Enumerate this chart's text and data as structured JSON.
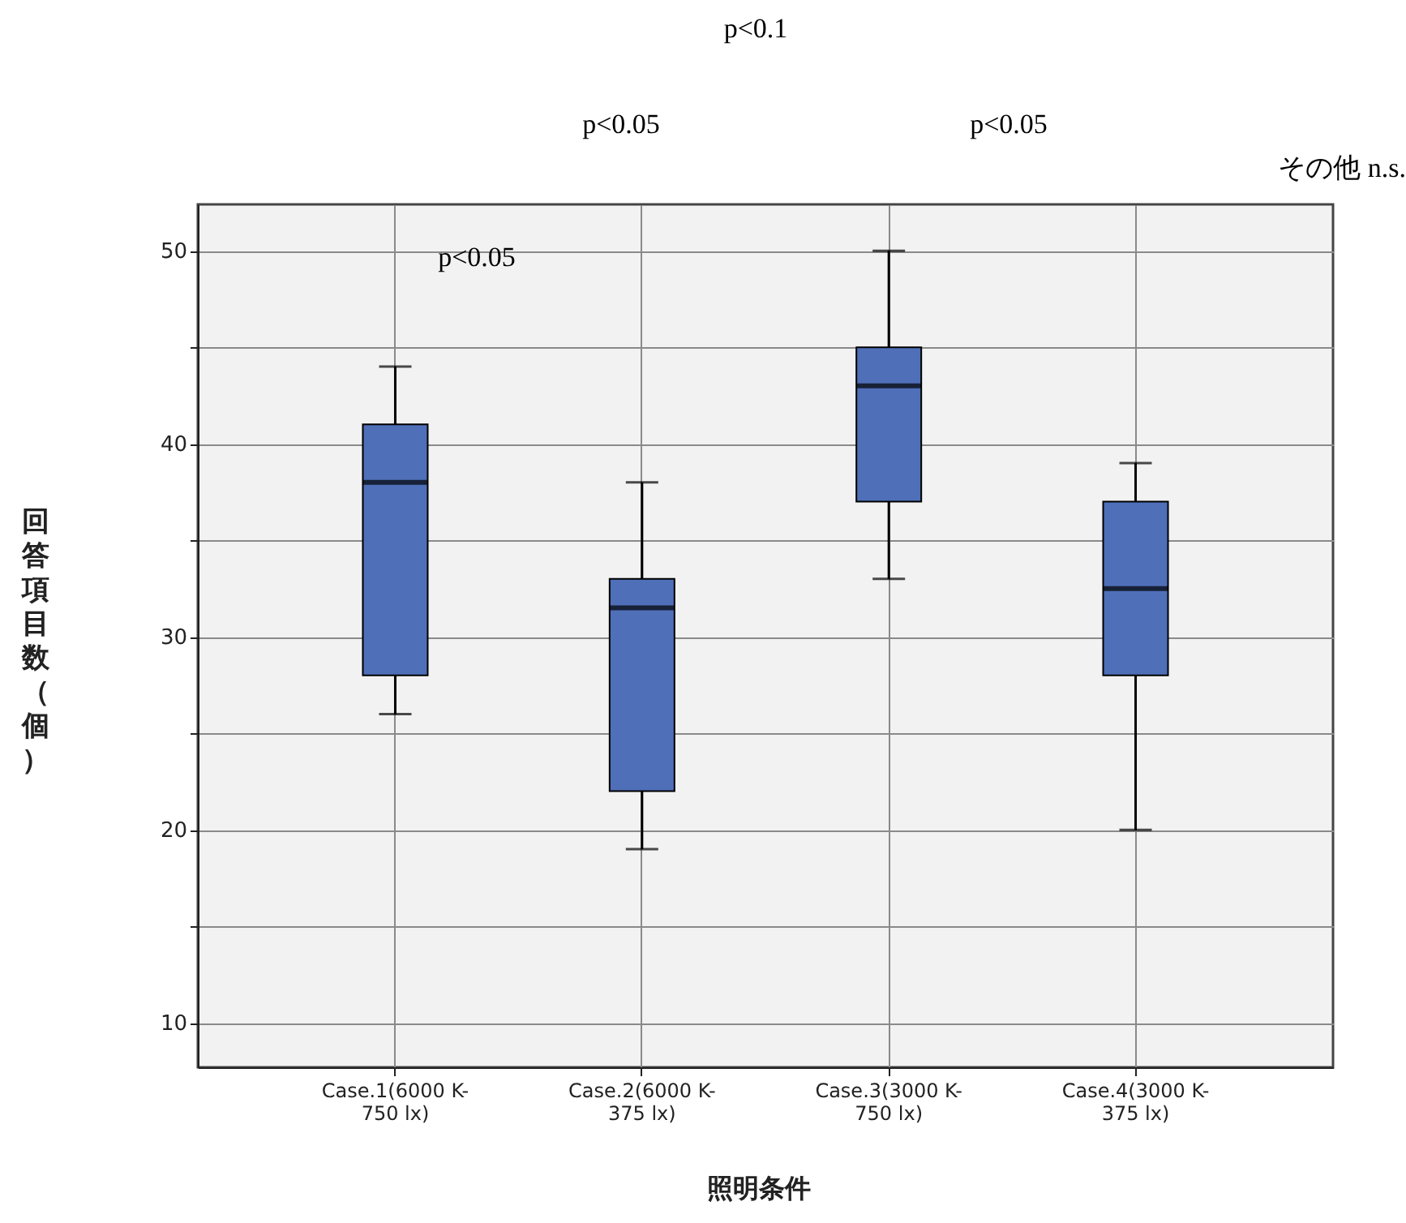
{
  "chart_data": {
    "type": "box",
    "xlabel": "照明条件",
    "ylabel": "回答項目数（個）",
    "categories": [
      "Case.1(6000 K-750 lx)",
      "Case.2(6000 K-375 lx)",
      "Case.3(3000 K-750 lx)",
      "Case.4(3000 K-375 lx)"
    ],
    "boxes": [
      {
        "low": 26,
        "q1": 28,
        "median": 38,
        "q3": 41,
        "high": 44
      },
      {
        "low": 19,
        "q1": 22,
        "median": 31.5,
        "q3": 33,
        "high": 38
      },
      {
        "low": 33,
        "q1": 37,
        "median": 43,
        "q3": 45,
        "high": 50
      },
      {
        "low": 20,
        "q1": 28,
        "median": 32.5,
        "q3": 37,
        "high": 39
      }
    ],
    "color": "#4f6fb8",
    "ylim": [
      7.7,
      52.4
    ],
    "yticks": [
      10,
      {
        "value": 15,
        "label": null
      },
      20,
      {
        "value": 25,
        "label": null
      },
      30,
      {
        "value": 35,
        "label": null
      },
      40,
      {
        "value": 45,
        "label": null
      },
      50
    ],
    "grid": true,
    "annotations": [
      "p<0.1",
      "p<0.05",
      "p<0.05",
      "その他 n.s.",
      "p<0.05"
    ]
  }
}
